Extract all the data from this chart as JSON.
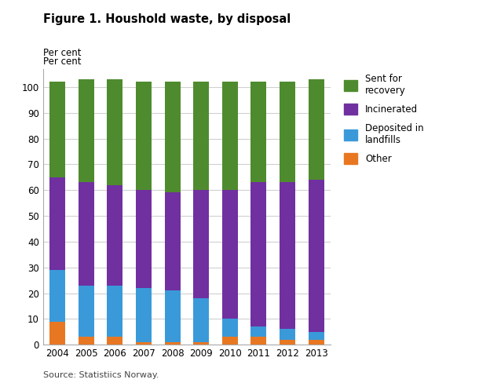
{
  "years": [
    2004,
    2005,
    2006,
    2007,
    2008,
    2009,
    2010,
    2011,
    2012,
    2013
  ],
  "other": [
    9,
    3,
    3,
    1,
    1,
    1,
    3,
    3,
    2,
    2
  ],
  "landfills": [
    20,
    20,
    20,
    21,
    20,
    17,
    7,
    4,
    4,
    3
  ],
  "incinerated": [
    36,
    40,
    39,
    38,
    38,
    42,
    50,
    56,
    57,
    59
  ],
  "recovery": [
    37,
    40,
    41,
    42,
    43,
    42,
    42,
    39,
    39,
    39
  ],
  "color_other": "#e87722",
  "color_landfills": "#3a9ad9",
  "color_incinerated": "#7030a0",
  "color_recovery": "#4e8b2e",
  "title": "Figure 1. Houshold waste, by disposal",
  "ylabel": "Per cent",
  "ylim": [
    0,
    107
  ],
  "yticks": [
    0,
    10,
    20,
    30,
    40,
    50,
    60,
    70,
    80,
    90,
    100
  ],
  "legend_labels": [
    "Sent for\nrecovery",
    "Incinerated",
    "Deposited in\nlandfills",
    "Other"
  ],
  "source": "Source: Statistiics Norway.",
  "bar_width": 0.55,
  "bg_color": "#ffffff",
  "grid_color": "#d0d0d0",
  "spine_color": "#aaaaaa"
}
